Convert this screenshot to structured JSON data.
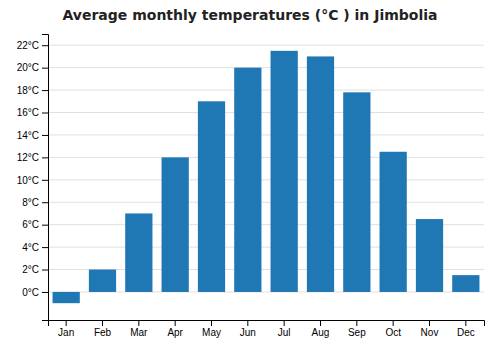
{
  "chart_data": {
    "type": "bar",
    "title": "Average monthly temperatures (°C ) in Jimbolia",
    "categories": [
      "Jan",
      "Feb",
      "Mar",
      "Apr",
      "May",
      "Jun",
      "Jul",
      "Aug",
      "Sep",
      "Oct",
      "Nov",
      "Dec"
    ],
    "values": [
      -1.0,
      2.0,
      7.0,
      12.0,
      17.0,
      20.0,
      21.5,
      21.0,
      17.8,
      12.5,
      6.5,
      1.5
    ],
    "ylim": [
      -2.5,
      23
    ],
    "yticks": [
      {
        "value": 0,
        "label": "0°C"
      },
      {
        "value": 2,
        "label": "2°C"
      },
      {
        "value": 4,
        "label": "4°C"
      },
      {
        "value": 6,
        "label": "6°C"
      },
      {
        "value": 8,
        "label": "8°C"
      },
      {
        "value": 10,
        "label": "10°C"
      },
      {
        "value": 12,
        "label": "12°C"
      },
      {
        "value": 14,
        "label": "14°C"
      },
      {
        "value": 16,
        "label": "16°C"
      },
      {
        "value": 18,
        "label": "18°C"
      },
      {
        "value": 20,
        "label": "20°C"
      },
      {
        "value": 22,
        "label": "22°C"
      }
    ],
    "grid": true
  }
}
